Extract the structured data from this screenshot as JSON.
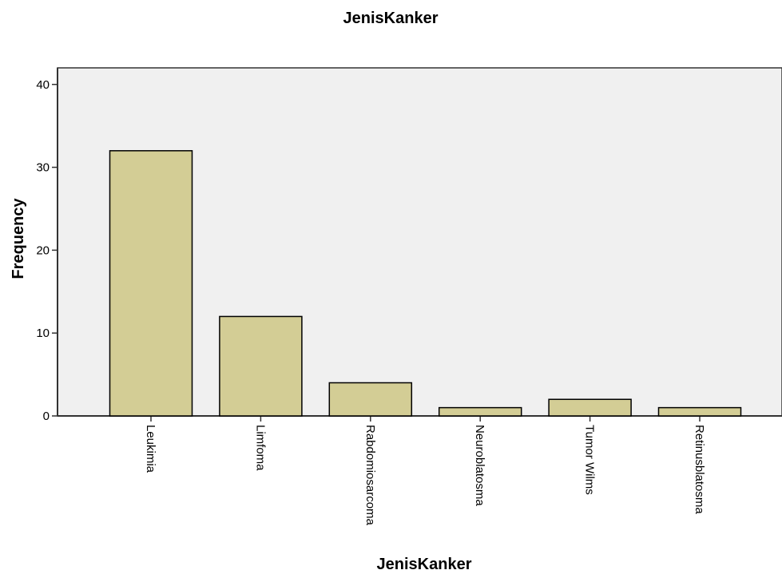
{
  "chart_data": {
    "type": "bar",
    "title": "JenisKanker",
    "xlabel": "JenisKanker",
    "ylabel": "Frequency",
    "categories": [
      "Leukimia",
      "Limfoma",
      "Rabdomiosarcoma",
      "Neuroblatosma",
      "Tumor Wilms",
      "Retinusblatosma"
    ],
    "values": [
      32,
      12,
      4,
      1,
      2,
      1
    ],
    "ylim": [
      0,
      42
    ],
    "yticks": [
      0,
      10,
      20,
      30,
      40
    ],
    "grid": false,
    "colors": {
      "bar_fill": "#d3cd95",
      "plot_background": "#f0f0f0"
    }
  }
}
